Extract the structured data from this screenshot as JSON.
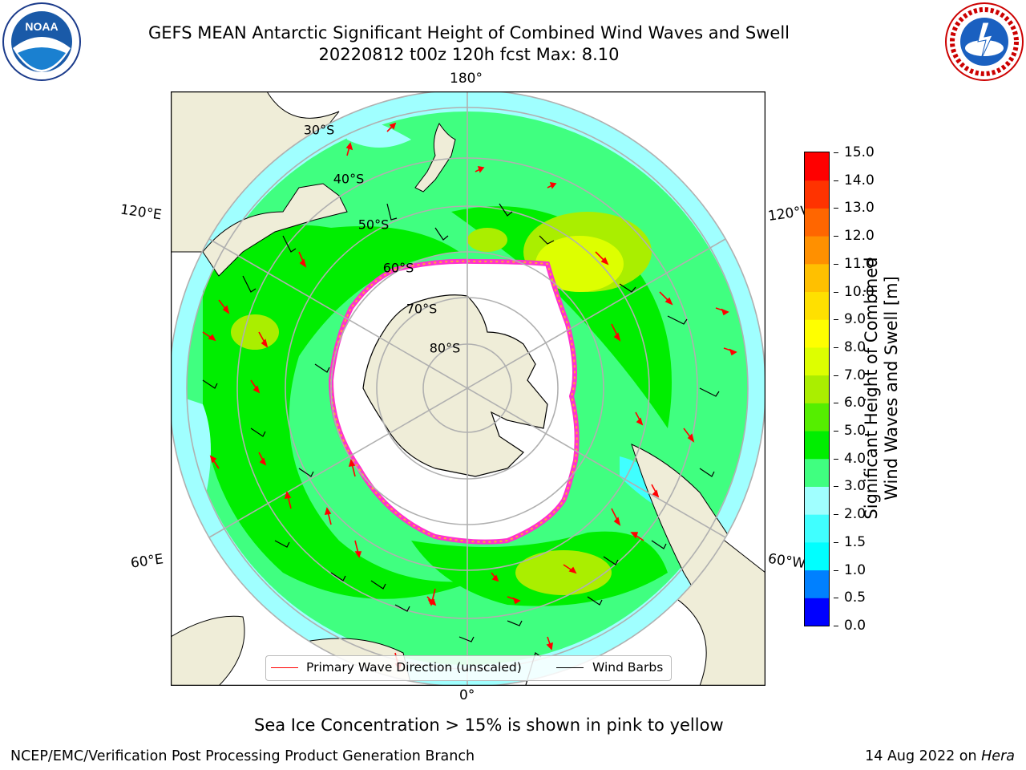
{
  "header": {
    "title_line1": "GEFS MEAN Antarctic Significant Height of Combined Wind Waves and Swell",
    "title_line2": "20220812 t00z 120h fcst   Max: 8.10"
  },
  "logos": {
    "left": {
      "icon": "noaa-logo-icon",
      "text": "NOAA"
    },
    "right": {
      "icon": "nws-logo-icon"
    }
  },
  "map": {
    "projection": "south-polar-stereographic",
    "lat_labels": [
      "30°S",
      "40°S",
      "50°S",
      "60°S",
      "70°S",
      "80°S"
    ],
    "lon_labels": {
      "top": "180°",
      "upper_left": "120°E",
      "upper_right": "120°W",
      "lower_left": "60°E",
      "lower_right": "60°W",
      "bottom": "0°"
    },
    "sea_ice_colors": [
      "#ff33cc",
      "#ffaa33",
      "#ffff66"
    ]
  },
  "colorbar": {
    "label_line1": "Significant Height of Combined",
    "label_line2": "Wind Waves and Swell [m]",
    "ticks": [
      "0.0",
      "0.5",
      "1.0",
      "1.5",
      "2.0",
      "3.0",
      "4.0",
      "5.0",
      "6.0",
      "7.0",
      "8.0",
      "9.0",
      "10.0",
      "11.0",
      "12.0",
      "13.0",
      "14.0",
      "15.0"
    ],
    "colors": [
      "#0000ff",
      "#0080ff",
      "#00ffff",
      "#40ffff",
      "#a0ffff",
      "#40ff80",
      "#00ee00",
      "#55ee00",
      "#aaee00",
      "#ddff00",
      "#ffff00",
      "#ffe000",
      "#ffc000",
      "#ff9000",
      "#ff6600",
      "#ff3300",
      "#ff0000"
    ]
  },
  "legend": {
    "primary_wave": "Primary Wave Direction (unscaled)",
    "wind_barbs": "Wind Barbs",
    "primary_wave_color": "#ff0000",
    "wind_barbs_color": "#000000"
  },
  "caption": "Sea Ice Concentration > 15% is shown in pink to yellow",
  "footer": {
    "left": "NCEP/EMC/Verification Post Processing Product Generation Branch",
    "date": "14 Aug 2022 on ",
    "machine": "Hera"
  }
}
